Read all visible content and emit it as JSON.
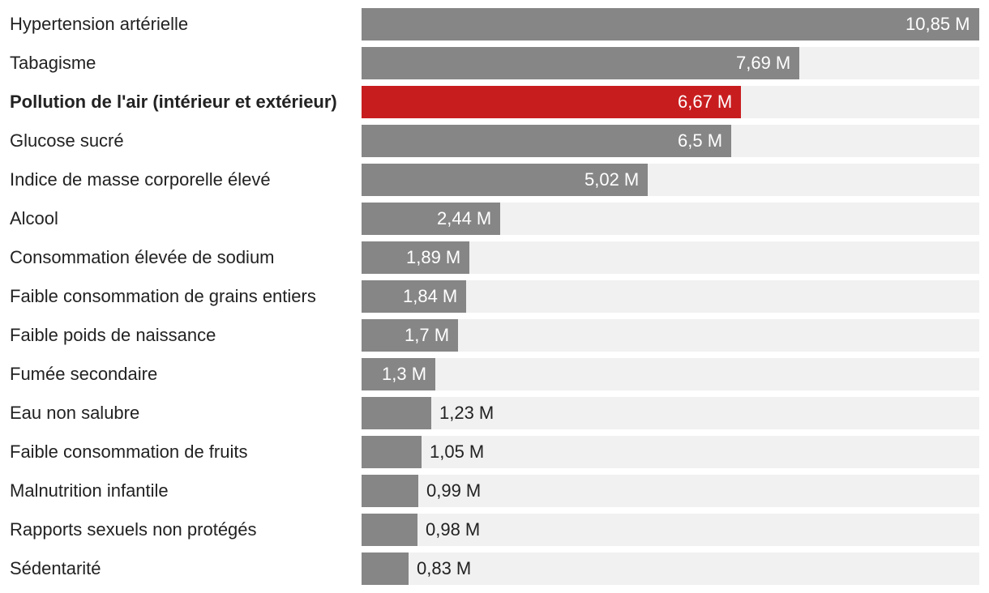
{
  "chart_data": {
    "type": "bar",
    "orientation": "horizontal",
    "categories": [
      "Hypertension artérielle",
      "Tabagisme",
      "Pollution de l'air (intérieur et extérieur)",
      "Glucose sucré",
      "Indice de masse corporelle élevé",
      "Alcool",
      "Consommation élevée de sodium",
      "Faible consommation de grains entiers",
      "Faible poids de naissance",
      "Fumée secondaire",
      "Eau non salubre",
      "Faible consommation de fruits",
      "Malnutrition infantile",
      "Rapports sexuels non protégés",
      "Sédentarité"
    ],
    "values": [
      10.85,
      7.69,
      6.67,
      6.5,
      5.02,
      2.44,
      1.89,
      1.84,
      1.7,
      1.3,
      1.23,
      1.05,
      0.99,
      0.98,
      0.83
    ],
    "value_labels": [
      "10,85 M",
      "7,69 M",
      "6,67 M",
      "6,5 M",
      "5,02 M",
      "2,44 M",
      "1,89 M",
      "1,84 M",
      "1,7 M",
      "1,3 M",
      "1,23 M",
      "1,05 M",
      "0,99 M",
      "0,98 M",
      "0,83 M"
    ],
    "highlight_index": 2,
    "xlim": [
      0,
      10.85
    ],
    "title": "",
    "xlabel": "",
    "ylabel": "",
    "grid": false,
    "legend": "none",
    "colors": {
      "bar": "#868686",
      "highlight": "#c81d1f",
      "track": "#f1f1f1",
      "label_inside": "#ffffff",
      "label_outside": "#222222"
    }
  }
}
